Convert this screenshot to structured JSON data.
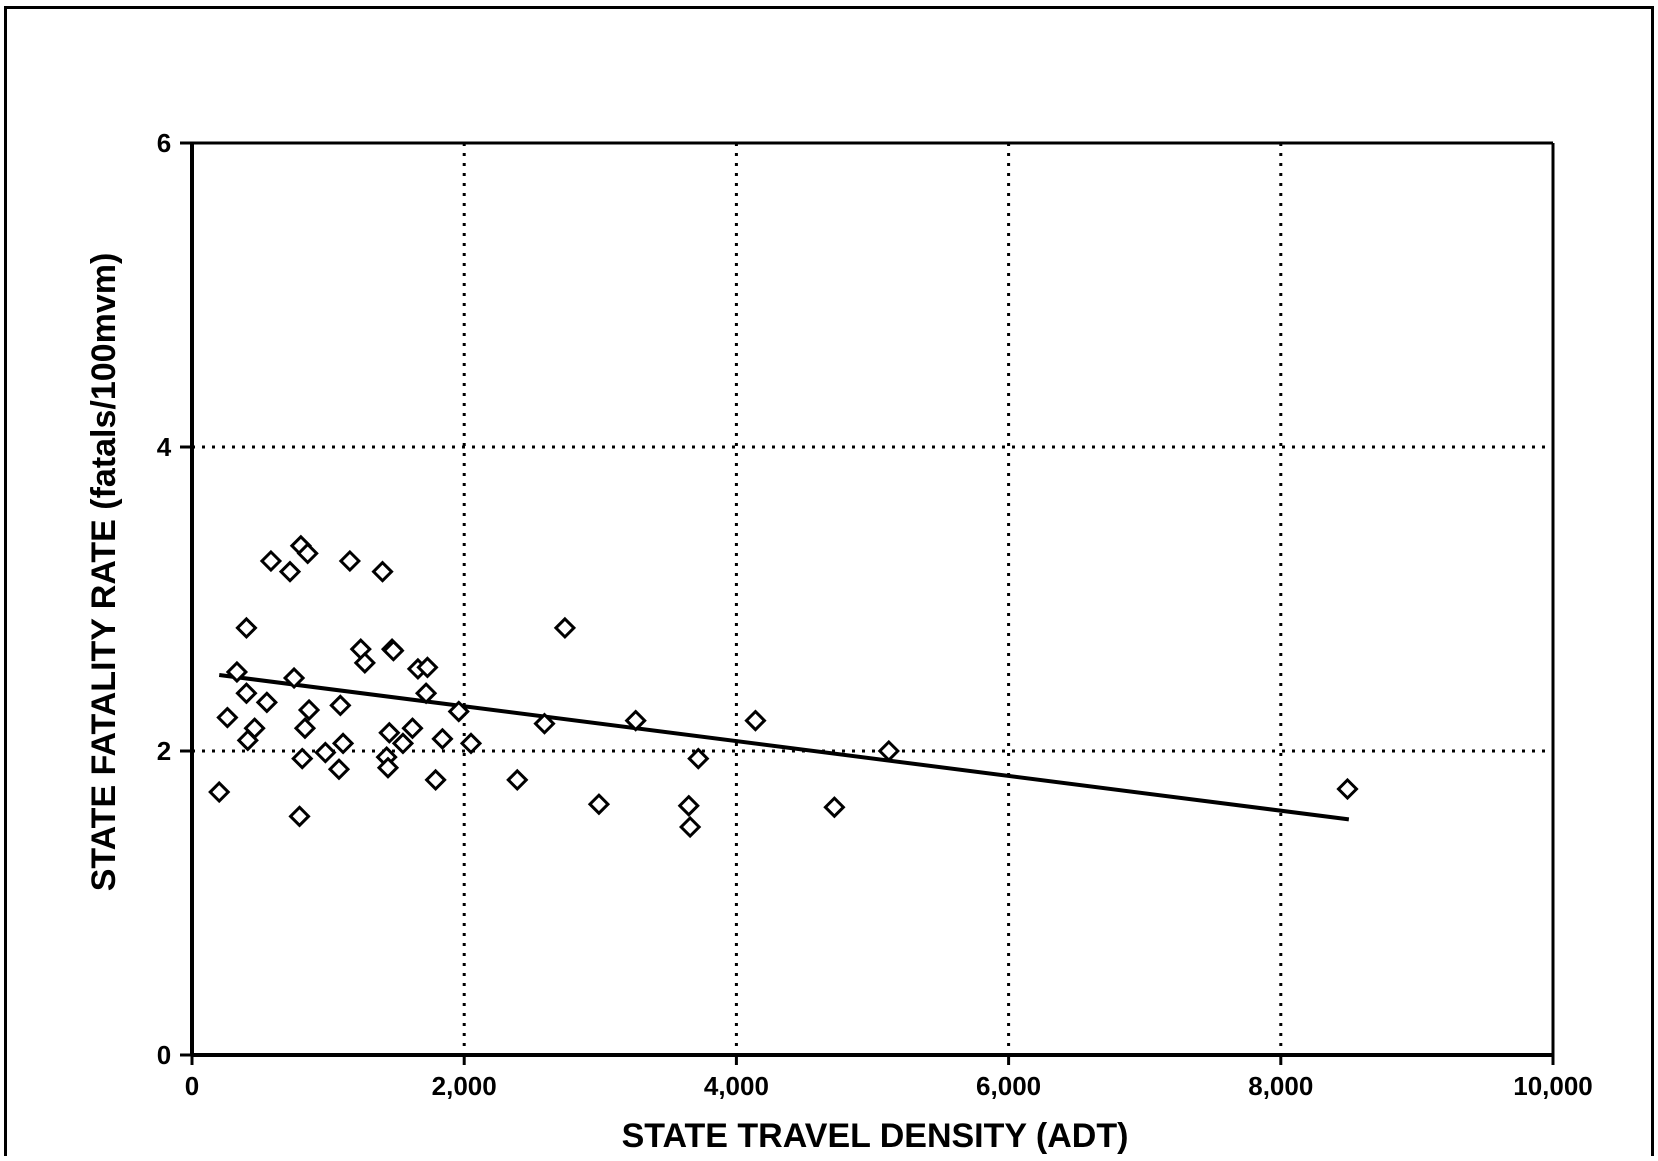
{
  "chart_data": {
    "type": "scatter",
    "title": "",
    "xlabel": "STATE TRAVEL DENSITY (ADT)",
    "ylabel": "STATE FATALITY RATE (fatals/100mvm)",
    "xlim": [
      0,
      10000
    ],
    "ylim": [
      0,
      6
    ],
    "x_ticks": [
      "0",
      "2,000",
      "4,000",
      "6,000",
      "8,000",
      "10,000"
    ],
    "y_ticks": [
      "0",
      "2",
      "4",
      "6"
    ],
    "grid": "dotted",
    "colors": {
      "axis": "#000000",
      "marker": "#000000",
      "grid": "#000000"
    },
    "series": [
      {
        "marker": "diamond-open",
        "points": [
          [
            200,
            1.73
          ],
          [
            260,
            2.22
          ],
          [
            330,
            2.52
          ],
          [
            400,
            2.81
          ],
          [
            400,
            2.38
          ],
          [
            410,
            2.07
          ],
          [
            460,
            2.15
          ],
          [
            550,
            2.32
          ],
          [
            580,
            3.25
          ],
          [
            720,
            3.18
          ],
          [
            750,
            2.48
          ],
          [
            790,
            1.57
          ],
          [
            800,
            3.35
          ],
          [
            810,
            1.95
          ],
          [
            830,
            2.15
          ],
          [
            850,
            3.3
          ],
          [
            860,
            2.27
          ],
          [
            980,
            1.99
          ],
          [
            1080,
            1.88
          ],
          [
            1090,
            2.3
          ],
          [
            1110,
            2.05
          ],
          [
            1160,
            3.25
          ],
          [
            1240,
            2.67
          ],
          [
            1270,
            2.58
          ],
          [
            1400,
            3.18
          ],
          [
            1430,
            1.96
          ],
          [
            1440,
            1.89
          ],
          [
            1450,
            2.12
          ],
          [
            1470,
            2.67
          ],
          [
            1480,
            2.66
          ],
          [
            1550,
            2.05
          ],
          [
            1620,
            2.15
          ],
          [
            1660,
            2.54
          ],
          [
            1720,
            2.38
          ],
          [
            1730,
            2.55
          ],
          [
            1790,
            1.81
          ],
          [
            1840,
            2.08
          ],
          [
            1960,
            2.26
          ],
          [
            2050,
            2.05
          ],
          [
            2390,
            1.81
          ],
          [
            2590,
            2.18
          ],
          [
            2740,
            2.81
          ],
          [
            2990,
            1.65
          ],
          [
            3260,
            2.2
          ],
          [
            3650,
            1.64
          ],
          [
            3660,
            1.5
          ],
          [
            3720,
            1.95
          ],
          [
            4140,
            2.2
          ],
          [
            4720,
            1.63
          ],
          [
            5120,
            2.0
          ],
          [
            8490,
            1.75
          ]
        ]
      }
    ],
    "trend_line": {
      "x": [
        200,
        8500
      ],
      "y": [
        2.5,
        1.55
      ]
    }
  }
}
